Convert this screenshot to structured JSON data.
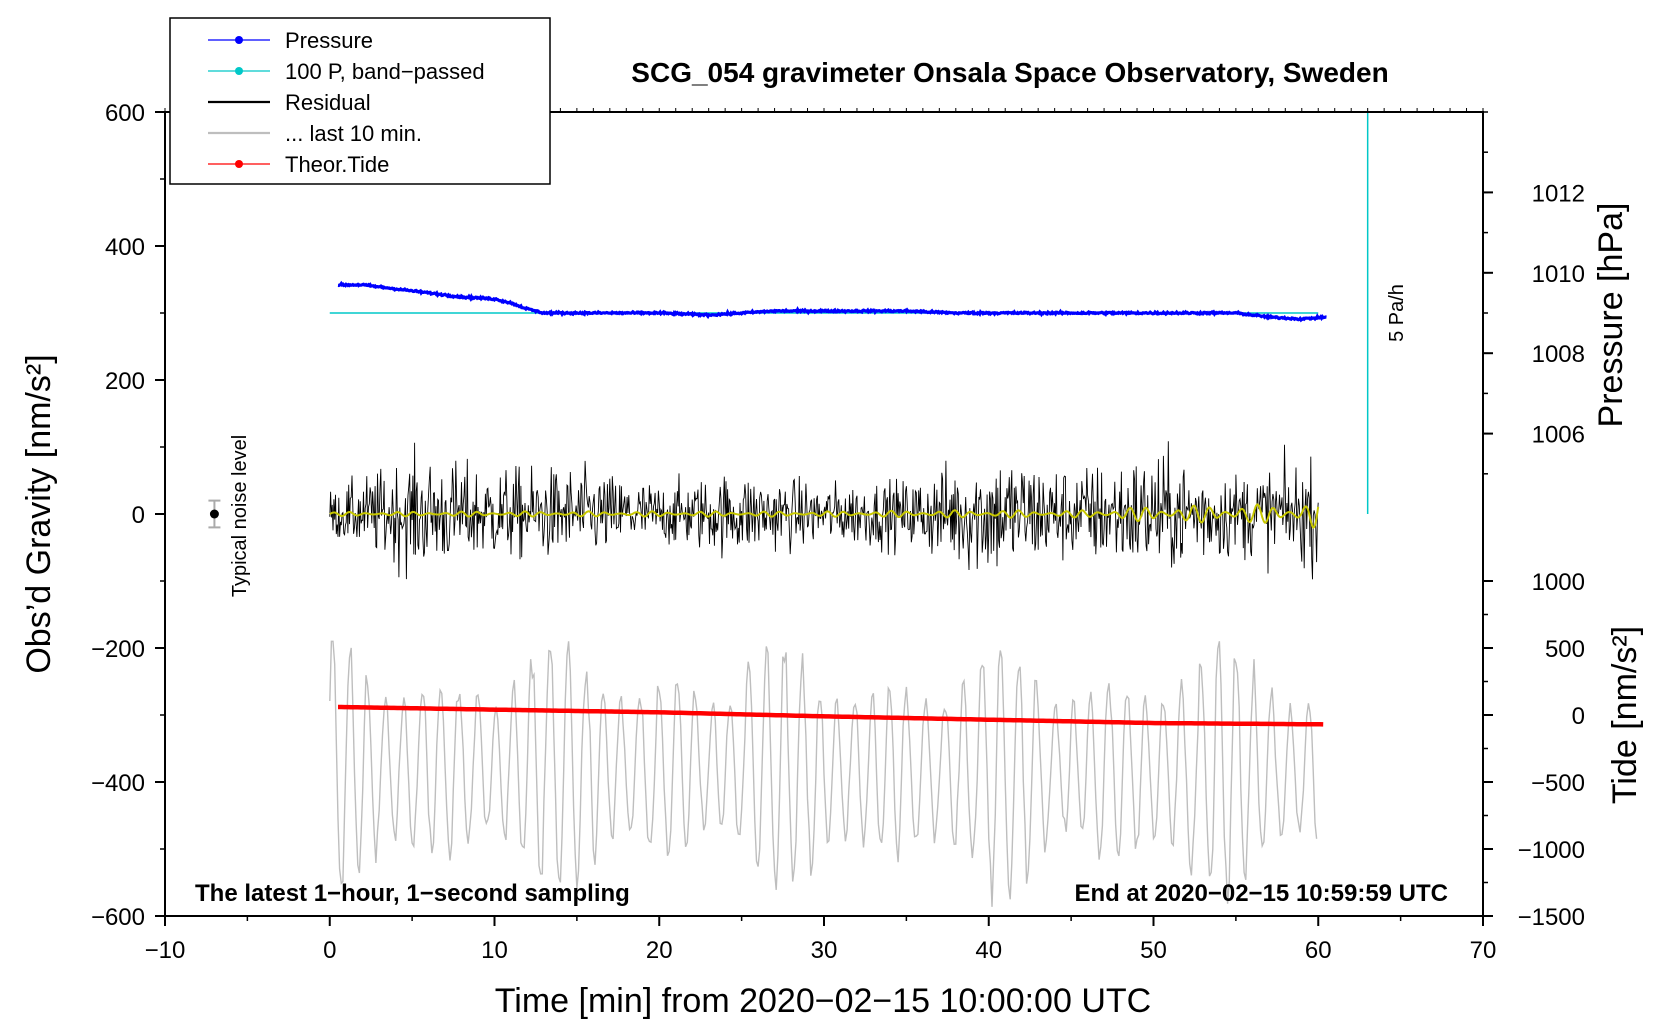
{
  "chart_data": {
    "type": "line",
    "title": "SCG_054 gravimeter Onsala Space Observatory, Sweden",
    "xlabel": "Time [min] from 2020−02−15 10:00:00 UTC",
    "ylabel_left": "Obs’d Gravity [nm/s²]",
    "ylabel_right_top": "Pressure [hPa]",
    "ylabel_right_bottom": "Tide [nm/s²]",
    "xlim": [
      -10,
      70
    ],
    "ylim_left": [
      -600,
      600
    ],
    "x_ticks": [
      {
        "value": -10,
        "label": "−10"
      },
      {
        "value": 0,
        "label": "0"
      },
      {
        "value": 10,
        "label": "10"
      },
      {
        "value": 20,
        "label": "20"
      },
      {
        "value": 30,
        "label": "30"
      },
      {
        "value": 40,
        "label": "40"
      },
      {
        "value": 50,
        "label": "50"
      },
      {
        "value": 60,
        "label": "60"
      },
      {
        "value": 70,
        "label": "70"
      }
    ],
    "y_left_ticks": [
      {
        "value": 600,
        "label": "600"
      },
      {
        "value": 400,
        "label": "400"
      },
      {
        "value": 200,
        "label": "200"
      },
      {
        "value": 0,
        "label": "0"
      },
      {
        "value": -200,
        "label": "−200"
      },
      {
        "value": -400,
        "label": "−400"
      },
      {
        "value": -600,
        "label": "−600"
      }
    ],
    "pressure_axis": {
      "ticks": [
        {
          "value": 1012,
          "label": "1012",
          "left_equiv": 480
        },
        {
          "value": 1010,
          "label": "1010",
          "left_equiv": 360
        },
        {
          "value": 1008,
          "label": "1008",
          "left_equiv": 240
        },
        {
          "value": 1006,
          "label": "1006",
          "left_equiv": 120
        }
      ]
    },
    "tide_axis": {
      "ticks": [
        {
          "value": 1000,
          "label": "1000",
          "left_equiv": -100
        },
        {
          "value": 500,
          "label": "500",
          "left_equiv": -200
        },
        {
          "value": 0,
          "label": "0",
          "left_equiv": -300
        },
        {
          "value": -500,
          "label": "−500",
          "left_equiv": -400
        },
        {
          "value": -1000,
          "label": "−1000",
          "left_equiv": -500
        },
        {
          "value": -1500,
          "label": "−1500",
          "left_equiv": -600
        }
      ]
    },
    "legend": {
      "placement": "top-left",
      "entries": [
        {
          "label": "Pressure",
          "color": "#0000ff",
          "marker": true
        },
        {
          "label": "100 P, band−passed",
          "color": "#00c8c8",
          "marker": true
        },
        {
          "label": "Residual",
          "color": "#000000",
          "marker": false
        },
        {
          "label": "... last 10 min.",
          "color": "#bebebe",
          "marker": false
        },
        {
          "label": "Theor.Tide",
          "color": "#ff0000",
          "marker": true
        }
      ]
    },
    "series": [
      {
        "name": "Pressure",
        "color": "#0000ff",
        "unit": "hPa",
        "x": [
          0.5,
          2,
          4,
          6,
          8,
          10,
          11,
          12,
          13,
          15,
          18,
          20,
          23,
          25,
          27,
          30,
          33,
          35,
          38,
          40,
          43,
          45,
          48,
          50,
          53,
          55,
          57,
          59,
          60.5
        ],
        "values": [
          1009.7,
          1009.7,
          1009.6,
          1009.5,
          1009.4,
          1009.35,
          1009.25,
          1009.1,
          1009.0,
          1009.0,
          1009.0,
          1009.0,
          1008.95,
          1009.0,
          1009.05,
          1009.05,
          1009.05,
          1009.05,
          1009.0,
          1009.0,
          1009.0,
          1009.0,
          1009.0,
          1009.0,
          1009.0,
          1009.0,
          1008.9,
          1008.85,
          1008.9
        ]
      },
      {
        "name": "100 P, band−passed",
        "color": "#00c8c8",
        "left_equiv_values": [
          300,
          300
        ],
        "x": [
          0,
          60
        ]
      },
      {
        "name": "Residual",
        "color": "#000000",
        "unit": "nm/s²",
        "x": [
          0,
          5,
          10,
          15,
          20,
          25,
          30,
          35,
          40,
          45,
          50,
          55,
          60
        ],
        "amplitude": [
          60,
          150,
          120,
          120,
          80,
          110,
          80,
          90,
          170,
          120,
          160,
          110,
          140
        ]
      },
      {
        "name": "Residual (band-pass filtered)",
        "color": "#c8c800",
        "x": [
          0,
          10,
          20,
          30,
          40,
          45,
          50,
          55,
          59,
          60
        ],
        "amplitude": [
          3,
          4,
          4,
          4,
          6,
          5,
          12,
          14,
          15,
          25
        ]
      },
      {
        "name": "... last 10 min.",
        "color": "#bebebe",
        "unit": "nm/s² (offset −380)",
        "x_range": [
          0,
          60
        ],
        "baseline": -380,
        "amplitude_range": [
          60,
          200
        ]
      },
      {
        "name": "Theor.Tide",
        "color": "#ff0000",
        "unit": "nm/s²",
        "x": [
          0.5,
          10,
          20,
          30,
          40,
          50,
          60.5
        ],
        "values": [
          60,
          40,
          20,
          -10,
          -35,
          -60,
          -70
        ]
      }
    ],
    "annotations": {
      "noise_label": "Typical noise level",
      "noise_point": {
        "x": -7,
        "y": 0,
        "err": 20
      },
      "rate_label": "5 Pa/h",
      "rate_bar": {
        "x": 63,
        "y_from": 600,
        "y_to": 0
      },
      "footer_left": "The latest 1−hour, 1−second sampling",
      "footer_right": "End at 2020−02−15 10:59:59 UTC"
    }
  }
}
